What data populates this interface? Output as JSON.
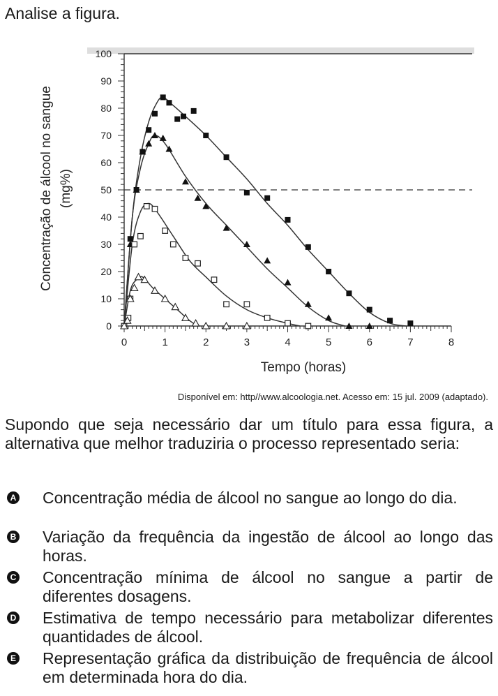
{
  "intro": "Analise a figura.",
  "chart_data": {
    "type": "scatter",
    "title": "",
    "xlabel": "Tempo (horas)",
    "ylabel_line1": "Concentração de álcool no sangue",
    "ylabel_line2": "(mg%)",
    "xlim": [
      0,
      8
    ],
    "ylim": [
      0,
      100
    ],
    "x_ticks": [
      "0",
      "1",
      "2",
      "3",
      "4",
      "5",
      "6",
      "7",
      "8"
    ],
    "y_ticks": [
      "0",
      "10",
      "20",
      "30",
      "40",
      "50",
      "60",
      "70",
      "80",
      "90",
      "100"
    ],
    "reference_line": {
      "y": 50,
      "style": "dashed"
    },
    "series": [
      {
        "marker": "filled-square",
        "points": [
          [
            0,
            0
          ],
          [
            0.15,
            32
          ],
          [
            0.3,
            50
          ],
          [
            0.45,
            64
          ],
          [
            0.6,
            72
          ],
          [
            0.75,
            78
          ],
          [
            0.95,
            84
          ],
          [
            1.1,
            82
          ],
          [
            1.3,
            76
          ],
          [
            1.45,
            77
          ],
          [
            1.7,
            79
          ],
          [
            2.0,
            70
          ],
          [
            2.5,
            62
          ],
          [
            3.0,
            49
          ],
          [
            3.5,
            47
          ],
          [
            4.0,
            39
          ],
          [
            4.5,
            29
          ],
          [
            5.0,
            20
          ],
          [
            5.5,
            12
          ],
          [
            6.0,
            6
          ],
          [
            6.5,
            2
          ],
          [
            7.0,
            1
          ]
        ],
        "curve": [
          [
            0,
            0
          ],
          [
            0.2,
            40
          ],
          [
            0.4,
            62
          ],
          [
            0.6,
            75
          ],
          [
            0.8,
            82
          ],
          [
            0.95,
            84
          ],
          [
            1.2,
            81
          ],
          [
            1.5,
            77
          ],
          [
            2.0,
            70
          ],
          [
            2.5,
            62
          ],
          [
            3.0,
            54
          ],
          [
            3.5,
            45
          ],
          [
            4.0,
            37
          ],
          [
            4.5,
            28
          ],
          [
            5.0,
            20
          ],
          [
            5.5,
            12
          ],
          [
            6.0,
            5
          ],
          [
            6.5,
            1
          ],
          [
            6.9,
            0
          ]
        ]
      },
      {
        "marker": "filled-triangle",
        "points": [
          [
            0,
            0
          ],
          [
            0.15,
            30
          ],
          [
            0.3,
            50
          ],
          [
            0.45,
            64
          ],
          [
            0.6,
            67
          ],
          [
            0.75,
            70
          ],
          [
            0.95,
            69
          ],
          [
            1.1,
            65
          ],
          [
            1.5,
            53
          ],
          [
            1.8,
            47
          ],
          [
            2.0,
            44
          ],
          [
            2.5,
            36
          ],
          [
            3.0,
            30
          ],
          [
            3.5,
            24
          ],
          [
            4.0,
            16
          ],
          [
            4.5,
            8
          ],
          [
            5.0,
            3
          ],
          [
            5.5,
            0
          ],
          [
            6.0,
            0
          ]
        ],
        "curve": [
          [
            0,
            0
          ],
          [
            0.2,
            40
          ],
          [
            0.4,
            58
          ],
          [
            0.6,
            67
          ],
          [
            0.75,
            70
          ],
          [
            1.0,
            67
          ],
          [
            1.5,
            55
          ],
          [
            2.0,
            45
          ],
          [
            2.5,
            37
          ],
          [
            3.0,
            29
          ],
          [
            3.5,
            21
          ],
          [
            4.0,
            14
          ],
          [
            4.5,
            7
          ],
          [
            5.0,
            2
          ],
          [
            5.4,
            0
          ]
        ]
      },
      {
        "marker": "open-square",
        "points": [
          [
            0,
            0
          ],
          [
            0.1,
            3
          ],
          [
            0.15,
            10
          ],
          [
            0.25,
            30
          ],
          [
            0.4,
            33
          ],
          [
            0.55,
            44
          ],
          [
            0.75,
            43
          ],
          [
            1.0,
            35
          ],
          [
            1.2,
            30
          ],
          [
            1.5,
            25
          ],
          [
            1.8,
            23
          ],
          [
            2.2,
            17
          ],
          [
            2.5,
            8
          ],
          [
            3.0,
            8
          ],
          [
            3.5,
            3
          ],
          [
            4.0,
            1
          ],
          [
            4.5,
            0
          ]
        ],
        "curve": [
          [
            0,
            0
          ],
          [
            0.2,
            30
          ],
          [
            0.4,
            42
          ],
          [
            0.6,
            45
          ],
          [
            0.8,
            42
          ],
          [
            1.2,
            33
          ],
          [
            1.6,
            24
          ],
          [
            2.0,
            18
          ],
          [
            2.5,
            11
          ],
          [
            3.0,
            6
          ],
          [
            3.5,
            3
          ],
          [
            4.0,
            1
          ],
          [
            4.3,
            0
          ]
        ]
      },
      {
        "marker": "open-triangle",
        "points": [
          [
            0,
            0
          ],
          [
            0.08,
            2
          ],
          [
            0.15,
            10
          ],
          [
            0.25,
            14
          ],
          [
            0.35,
            18
          ],
          [
            0.5,
            17
          ],
          [
            0.75,
            13
          ],
          [
            1.0,
            10
          ],
          [
            1.25,
            7
          ],
          [
            1.5,
            3
          ],
          [
            1.75,
            1
          ],
          [
            2.0,
            0
          ],
          [
            2.5,
            0
          ],
          [
            3.0,
            0
          ]
        ],
        "curve": [
          [
            0,
            0
          ],
          [
            0.15,
            13
          ],
          [
            0.3,
            17
          ],
          [
            0.45,
            18
          ],
          [
            0.7,
            14
          ],
          [
            1.0,
            10
          ],
          [
            1.3,
            6
          ],
          [
            1.6,
            2
          ],
          [
            1.8,
            0
          ]
        ]
      }
    ]
  },
  "source": "Disponível em: http//www.alcoologia.net. Acesso em: 15 jul. 2009 (adaptado).",
  "question": "Supondo que seja necessário dar um título para essa figura, a alternativa que melhor traduziria o processo representado seria:",
  "options": [
    {
      "letter": "A",
      "text": "Concentração média de álcool no sangue ao longo do dia."
    },
    {
      "letter": "B",
      "text": "Variação da frequência da ingestão de álcool ao longo das horas."
    },
    {
      "letter": "C",
      "text": "Concentração mínima de álcool no sangue a partir de diferentes dosagens."
    },
    {
      "letter": "D",
      "text": "Estimativa de tempo necessário para metabolizar diferentes quantidades de álcool."
    },
    {
      "letter": "E",
      "text": "Representação gráfica da distribuição de frequência de álcool em determinada hora do dia."
    }
  ]
}
